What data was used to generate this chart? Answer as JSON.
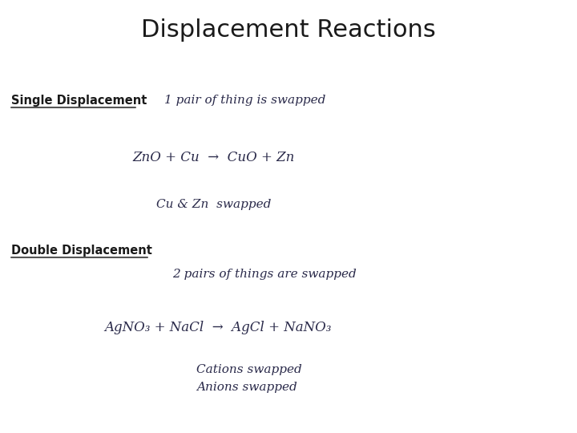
{
  "title": "Displacement Reactions",
  "title_fontsize": 22,
  "bg_color": "#ffffff",
  "text_color": "#1a1a1a",
  "handwriting_color": "#2a2a4a",
  "single_label": "Single Displacement",
  "double_label": "Double Displacement",
  "single_desc": "1 pair of thing is swapped",
  "single_equation": "ZnO + Cu  →  CuO + Zn",
  "single_note": "Cu & Zn  swapped",
  "double_desc": "2 pairs of things are swapped",
  "double_equation": "AgNO₃ + NaCl  →  AgCl + NaNO₃",
  "double_note1": "Cations swapped",
  "double_note2": "Anions swapped",
  "label_fontsize": 10.5,
  "hw_fontsize": 11,
  "eq_fontsize": 12
}
